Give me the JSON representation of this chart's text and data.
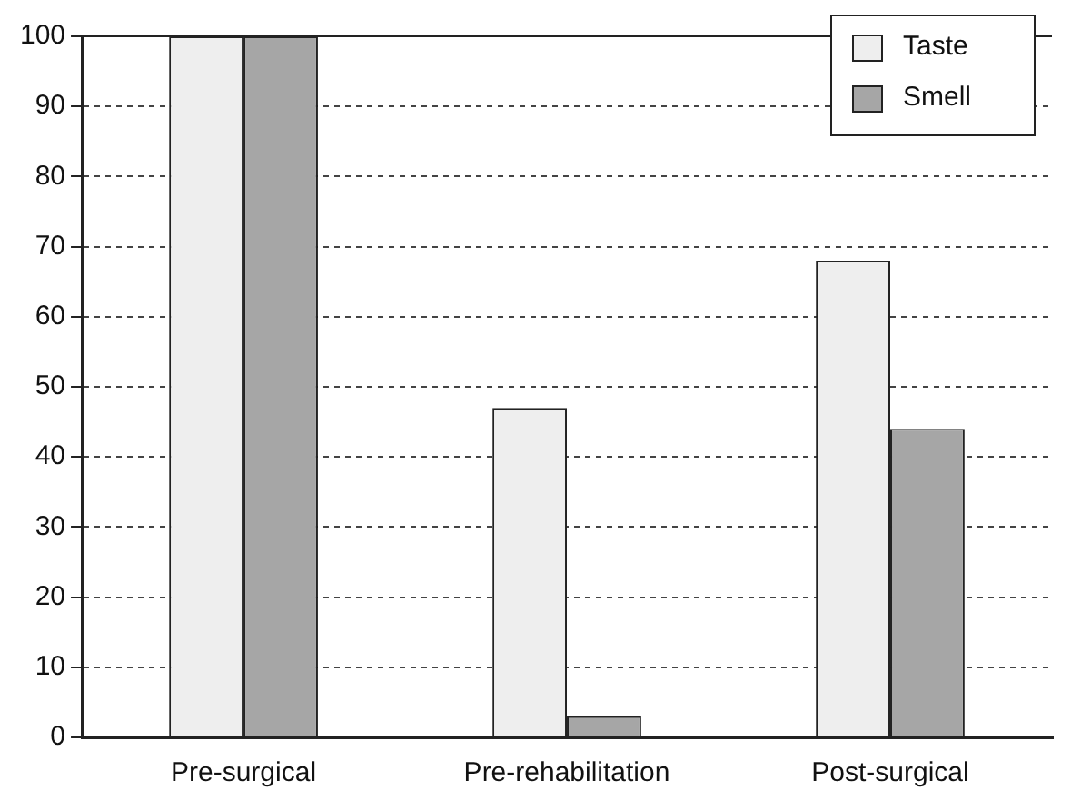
{
  "chart_data": {
    "type": "bar",
    "categories": [
      "Pre-surgical",
      "Pre-rehabilitation",
      "Post-surgical"
    ],
    "series": [
      {
        "name": "Taste",
        "color": "#eeeeee",
        "values": [
          100,
          47,
          68
        ]
      },
      {
        "name": "Smell",
        "color": "#a6a6a6",
        "values": [
          100,
          3,
          44
        ]
      }
    ],
    "ylim": [
      0,
      100
    ],
    "yticks": [
      0,
      10,
      20,
      30,
      40,
      50,
      60,
      70,
      80,
      90,
      100
    ],
    "grid": "y",
    "legend": "top right"
  }
}
